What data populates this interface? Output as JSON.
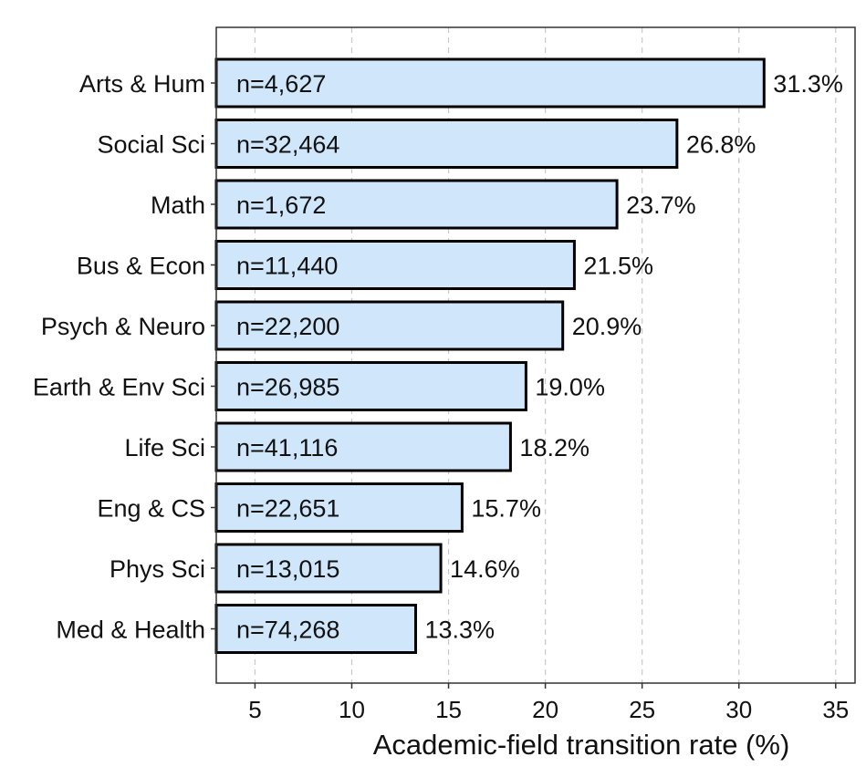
{
  "chart_data": {
    "type": "bar",
    "orientation": "horizontal",
    "title": "",
    "xlabel": "Academic-field transition rate (%)",
    "ylabel": "",
    "xlim": [
      3,
      36
    ],
    "xticks": [
      5,
      10,
      15,
      20,
      25,
      30,
      35
    ],
    "grid": "vertical dashed",
    "bar_color": "#cfe6fb",
    "bar_edge_color": "#000000",
    "categories": [
      "Arts & Hum",
      "Social Sci",
      "Math",
      "Bus & Econ",
      "Psych & Neuro",
      "Earth & Env Sci",
      "Life Sci",
      "Eng & CS",
      "Phys Sci",
      "Med & Health"
    ],
    "values": [
      31.3,
      26.8,
      23.7,
      21.5,
      20.9,
      19.0,
      18.2,
      15.7,
      14.6,
      13.3
    ],
    "value_labels": [
      "31.3%",
      "26.8%",
      "23.7%",
      "21.5%",
      "20.9%",
      "19.0%",
      "18.2%",
      "15.7%",
      "14.6%",
      "13.3%"
    ],
    "counts": [
      "n=4,627",
      "n=32,464",
      "n=1,672",
      "n=11,440",
      "n=22,200",
      "n=26,985",
      "n=41,116",
      "n=22,651",
      "n=13,015",
      "n=74,268"
    ]
  }
}
